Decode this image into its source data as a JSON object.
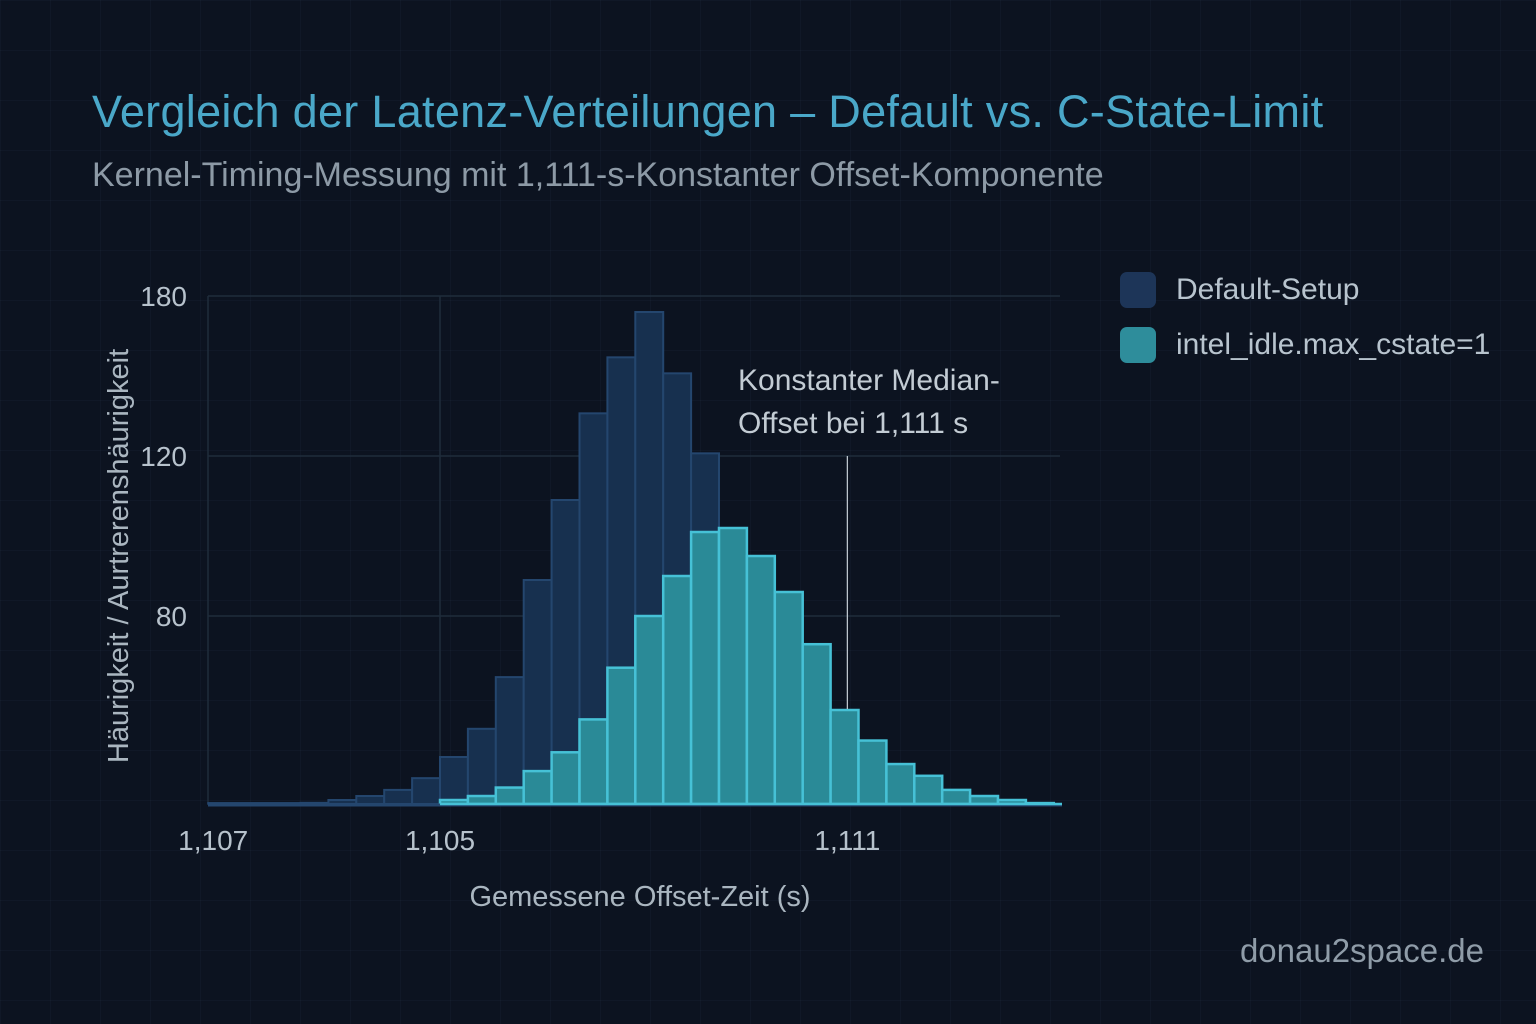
{
  "title": "Vergleich der Latenz-Verteilungen – Default vs. C-State-Limit",
  "subtitle": "Kernel-Timing-Messung mit 1,111-s-Konstanter Offset-Komponente",
  "watermark": "donau2space.de",
  "legend": [
    {
      "label": "Default-Setup",
      "color": "#1d3558"
    },
    {
      "label": "intel_idle.max_cstate=1",
      "color": "#2e8d9b"
    }
  ],
  "colors": {
    "background": "#0c1320",
    "title": "#4aa8c9",
    "default_fill": "#17304f",
    "default_stroke": "#24466e",
    "cstate_fill": "#2a8a97",
    "cstate_stroke": "#46c1d6",
    "annotation_line": "#c8d0d8"
  },
  "chart_data": {
    "type": "bar",
    "subtype": "overlaid-histogram",
    "title": "Vergleich der Latenz-Verteilungen – Default vs. C-State-Limit",
    "subtitle": "Kernel-Timing-Messung mit 1,111-s-Konstanter Offset-Komponente",
    "xlabel": "Gemessene Offset-Zeit (s)",
    "ylabel": "Häurigkeit / Aurtrerenshäurigkeit",
    "x_ticks": [
      {
        "label": "1,107",
        "bin_position": -7.2
      },
      {
        "label": "1,105",
        "bin_position": 1
      },
      {
        "label": "1,111",
        "bin_position": 15.6
      }
    ],
    "y_ticks": [
      80,
      120,
      180
    ],
    "y_scale": "piecewise (non-uniform tick spacing as drawn)",
    "ylim": [
      0,
      180
    ],
    "grid": true,
    "legend_position": "top-right (outside plot)",
    "bin_count": 26,
    "series": [
      {
        "name": "Default-Setup",
        "start_bin": -4,
        "values": [
          0.5,
          1.7,
          3.4,
          6,
          11,
          20,
          32,
          54,
          89,
          109,
          136,
          157,
          174,
          151,
          121,
          102
        ]
      },
      {
        "name": "intel_idle.max_cstate=1",
        "start_bin": 1,
        "values": [
          1.7,
          3.4,
          7,
          14,
          22,
          36,
          58,
          80,
          90,
          101,
          102,
          95,
          86,
          68,
          40,
          27,
          17,
          12,
          6,
          3.4,
          1.7,
          0.4
        ]
      }
    ],
    "low_tail": {
      "series": "Default-Setup",
      "value": 0.5,
      "from_label": "1,107"
    },
    "annotations": [
      {
        "text_lines": [
          "Konstanter Median-",
          "Offset bei 1,111 s"
        ],
        "x_label": "1,111",
        "type": "vertical-line",
        "line_top_value": 120
      }
    ]
  }
}
